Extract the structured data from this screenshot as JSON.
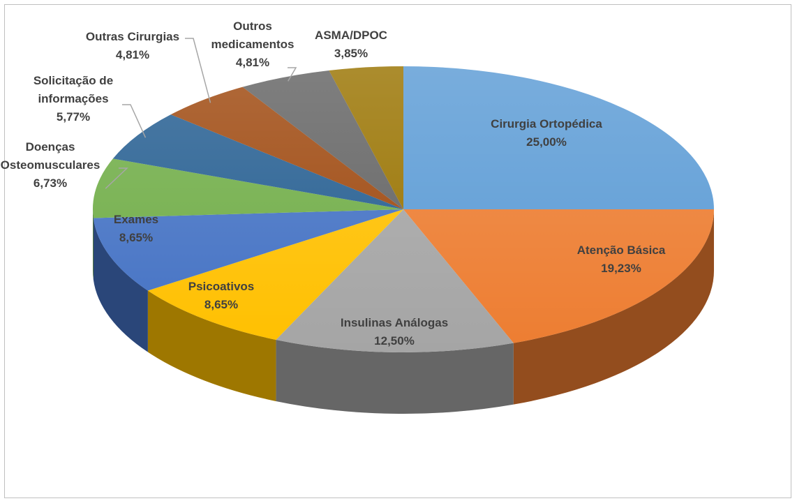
{
  "chart_data": {
    "type": "pie",
    "3d": true,
    "categories": [
      "Cirurgia Ortopédica",
      "Atenção Básica",
      "Insulinas Análogas",
      "Psicoativos",
      "Exames",
      "Doenças Osteomusculares",
      "Solicitação de informações",
      "Outras Cirurgias",
      "Outros medicamentos",
      "ASMA/DPOC"
    ],
    "values": [
      25,
      19.23,
      12.5,
      8.65,
      8.65,
      6.73,
      5.77,
      4.81,
      4.81,
      3.85
    ],
    "value_labels": [
      "25,00%",
      "19,23%",
      "12,50%",
      "8,65%",
      "8,65%",
      "6,73%",
      "5,77%",
      "4,81%",
      "4,81%",
      "3,85%"
    ],
    "colors": [
      "#5b9bd5",
      "#ed7d31",
      "#a5a5a5",
      "#ffc000",
      "#4472c4",
      "#70ad47",
      "#255e91",
      "#9e480e",
      "#636363",
      "#997300"
    ]
  }
}
